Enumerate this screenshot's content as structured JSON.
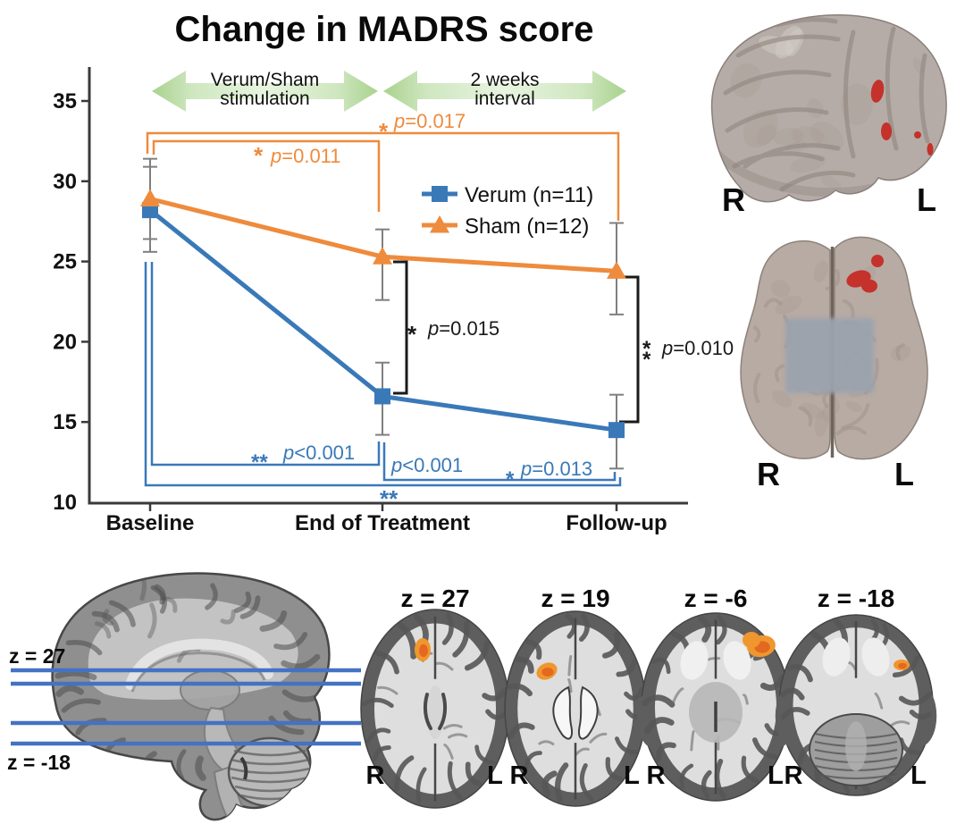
{
  "figure": {
    "background": "#ffffff"
  },
  "chart_data": {
    "type": "line",
    "title": "Change in MADRS score",
    "categories": [
      "Baseline",
      "End of Treatment",
      "Follow-up"
    ],
    "ylabel": "",
    "ylim": [
      10,
      37
    ],
    "yticks": [
      10,
      15,
      20,
      25,
      30,
      35
    ],
    "error_bar_color": "#7f7f7f",
    "series": [
      {
        "name": "Verum (n=11)",
        "marker": "square",
        "color": "#3a79b8",
        "values": [
          28.2,
          16.6,
          14.5
        ],
        "err_up": [
          2.7,
          2.1,
          2.2
        ],
        "err_down": [
          2.6,
          2.4,
          2.4
        ]
      },
      {
        "name": "Sham (n=12)",
        "marker": "triangle",
        "color": "#ee8b3d",
        "values": [
          28.9,
          25.3,
          24.4
        ],
        "err_up": [
          2.5,
          1.7,
          3.0
        ],
        "err_down": [
          2.5,
          2.7,
          2.7
        ]
      }
    ],
    "period_arrows": [
      {
        "line1": "Verum/Sham",
        "line2": "stimulation",
        "from": "Baseline",
        "to": "End of Treatment",
        "color": "#b9dca4"
      },
      {
        "line1": "2 weeks",
        "line2": "interval",
        "from": "End of Treatment",
        "to": "Follow-up",
        "color": "#b9dca4"
      }
    ],
    "significance": [
      {
        "id": "o1",
        "series": "Sham",
        "compare": [
          "Baseline",
          "Follow-up"
        ],
        "stars": "*",
        "p": "p=0.017",
        "color": "#ee8b3d"
      },
      {
        "id": "o2",
        "series": "Sham",
        "compare": [
          "Baseline",
          "End of Treatment"
        ],
        "stars": "*",
        "p": "p=0.011",
        "color": "#ee8b3d"
      },
      {
        "id": "b1",
        "series": "Verum vs Sham",
        "compare": [
          "End of Treatment"
        ],
        "stars": "*",
        "p": "p=0.015",
        "color": "#1a1a1a"
      },
      {
        "id": "b2",
        "series": "Verum vs Sham",
        "compare": [
          "Follow-up"
        ],
        "stars": "**",
        "p": "p=0.010",
        "color": "#1a1a1a"
      },
      {
        "id": "bl_a",
        "series": "Verum",
        "compare": [
          "Baseline",
          "End of Treatment"
        ],
        "stars": "**",
        "p": "p<0.001",
        "color": "#3a79b8"
      },
      {
        "id": "bl_b",
        "series": "Verum",
        "compare": [
          "Baseline",
          "Follow-up"
        ],
        "stars": "**",
        "p": "p<0.001",
        "color": "#3a79b8"
      },
      {
        "id": "bl_c",
        "series": "Verum",
        "compare": [
          "End of Treatment",
          "Follow-up"
        ],
        "stars": "*",
        "p": "p=0.013",
        "color": "#3a79b8"
      }
    ]
  },
  "brains": {
    "lateral": {
      "left_label": "R",
      "right_label": "L",
      "activation_color": "#c5312b"
    },
    "superior": {
      "left_label": "R",
      "right_label": "L",
      "activation_color": "#c5312b"
    },
    "sagittal": {
      "top_line_label": "z = 27",
      "bottom_line_label": "z = -18",
      "line_color": "#4472c4",
      "line_z_values": [
        27,
        19,
        -6,
        -18
      ]
    },
    "axial_slices": [
      {
        "title": "z = 27",
        "left_label": "R",
        "right_label": "L"
      },
      {
        "title": "z = 19",
        "left_label": "R",
        "right_label": "L"
      },
      {
        "title": "z = -6",
        "left_label": "R",
        "right_label": "L"
      },
      {
        "title": "z = -18",
        "left_label": "R",
        "right_label": "L"
      }
    ],
    "activation_color": "#f0962e"
  }
}
